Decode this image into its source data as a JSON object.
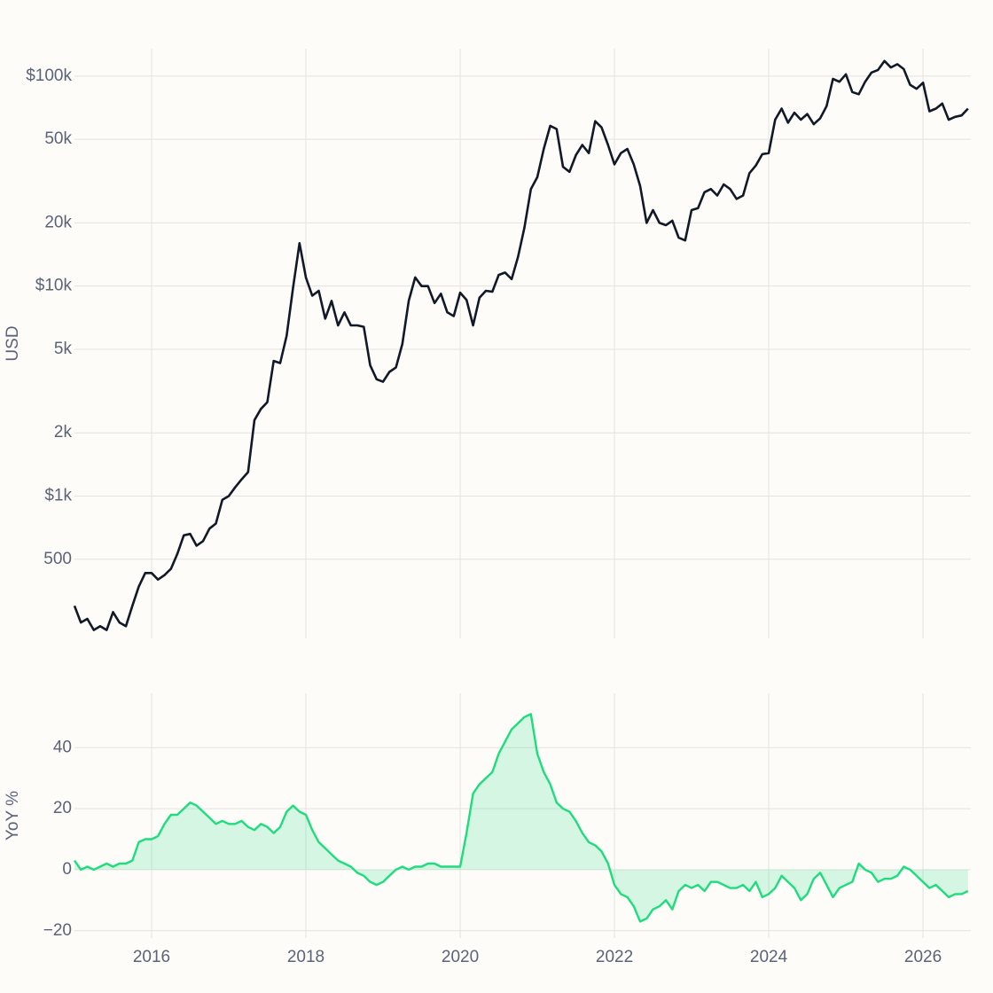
{
  "chart_data": [
    {
      "type": "line",
      "log_scale": true,
      "grid": true,
      "color": "#111827",
      "ylabel": "USD",
      "xlim": [
        2015.0,
        2026.62
      ],
      "xticks": [
        2016,
        2018,
        2020,
        2022,
        2024,
        2026
      ],
      "ylim": [
        210,
        135000
      ],
      "yticks": [
        500,
        {
          "value": 1000,
          "label": "$1k"
        },
        {
          "value": 2000,
          "label": "2k"
        },
        {
          "value": 5000,
          "label": "5k"
        },
        {
          "value": 10000,
          "label": "$10k"
        },
        {
          "value": 20000,
          "label": "20k"
        },
        {
          "value": 50000,
          "label": "50k"
        },
        {
          "value": 100000,
          "label": "$100k"
        }
      ],
      "x": [
        2015.0,
        2015.083,
        2015.167,
        2015.25,
        2015.333,
        2015.417,
        2015.5,
        2015.583,
        2015.667,
        2015.75,
        2015.833,
        2015.917,
        2016.0,
        2016.083,
        2016.167,
        2016.25,
        2016.333,
        2016.417,
        2016.5,
        2016.583,
        2016.667,
        2016.75,
        2016.833,
        2016.917,
        2017.0,
        2017.083,
        2017.167,
        2017.25,
        2017.333,
        2017.417,
        2017.5,
        2017.583,
        2017.667,
        2017.75,
        2017.833,
        2017.917,
        2018.0,
        2018.083,
        2018.167,
        2018.25,
        2018.333,
        2018.417,
        2018.5,
        2018.583,
        2018.667,
        2018.75,
        2018.833,
        2018.917,
        2019.0,
        2019.083,
        2019.167,
        2019.25,
        2019.333,
        2019.417,
        2019.5,
        2019.583,
        2019.667,
        2019.75,
        2019.833,
        2019.917,
        2020.0,
        2020.083,
        2020.167,
        2020.25,
        2020.333,
        2020.417,
        2020.5,
        2020.583,
        2020.667,
        2020.75,
        2020.833,
        2020.917,
        2021.0,
        2021.083,
        2021.167,
        2021.25,
        2021.333,
        2021.417,
        2021.5,
        2021.583,
        2021.667,
        2021.75,
        2021.833,
        2021.917,
        2022.0,
        2022.083,
        2022.167,
        2022.25,
        2022.333,
        2022.417,
        2022.5,
        2022.583,
        2022.667,
        2022.75,
        2022.833,
        2022.917,
        2023.0,
        2023.083,
        2023.167,
        2023.25,
        2023.333,
        2023.417,
        2023.5,
        2023.583,
        2023.667,
        2023.75,
        2023.833,
        2023.917,
        2024.0,
        2024.083,
        2024.167,
        2024.25,
        2024.333,
        2024.417,
        2024.5,
        2024.583,
        2024.667,
        2024.75,
        2024.833,
        2024.917,
        2025.0,
        2025.083,
        2025.167,
        2025.25,
        2025.333,
        2025.417,
        2025.5,
        2025.583,
        2025.667,
        2025.75,
        2025.833,
        2025.917,
        2026.0,
        2026.083,
        2026.167,
        2026.25,
        2026.333,
        2026.417,
        2026.5,
        2026.583
      ],
      "values": [
        300,
        250,
        260,
        230,
        240,
        230,
        280,
        250,
        240,
        300,
        370,
        430,
        430,
        400,
        420,
        450,
        530,
        650,
        660,
        580,
        610,
        700,
        740,
        960,
        1000,
        1100,
        1200,
        1300,
        2300,
        2600,
        2800,
        4400,
        4300,
        5800,
        9800,
        16000,
        11000,
        9000,
        9500,
        7000,
        8500,
        6500,
        7500,
        6500,
        6500,
        6400,
        4200,
        3600,
        3500,
        3900,
        4100,
        5300,
        8500,
        11000,
        10000,
        10000,
        8300,
        9200,
        7500,
        7200,
        9300,
        8600,
        6500,
        8800,
        9500,
        9400,
        11300,
        11600,
        10800,
        13800,
        19000,
        29000,
        33000,
        45000,
        58000,
        56000,
        37000,
        35000,
        42000,
        47000,
        43000,
        61000,
        57000,
        47000,
        38000,
        43000,
        45000,
        38000,
        30000,
        20000,
        23000,
        20000,
        19500,
        20500,
        17000,
        16500,
        23000,
        23500,
        28000,
        29000,
        27000,
        30500,
        29000,
        26000,
        27000,
        34500,
        37500,
        42500,
        43000,
        62000,
        70000,
        60000,
        67000,
        62000,
        66000,
        59000,
        63000,
        72000,
        97000,
        94000,
        102000,
        84000,
        82000,
        94000,
        104000,
        107000,
        118000,
        110000,
        114000,
        108000,
        91000,
        87000,
        93000,
        68000,
        70000,
        74000,
        62000,
        64000,
        65000,
        70000
      ]
    },
    {
      "type": "area",
      "grid": true,
      "color": "#1fdc7e",
      "ylabel": "YoY %",
      "xlim": [
        2015.0,
        2026.62
      ],
      "xticks": [
        2016,
        2018,
        2020,
        2022,
        2024,
        2026
      ],
      "ylim": [
        -22.4,
        57.8
      ],
      "yticks": [
        {
          "value": -20,
          "label": "−20"
        },
        0,
        20,
        40
      ],
      "x": [
        2015.0,
        2015.083,
        2015.167,
        2015.25,
        2015.333,
        2015.417,
        2015.5,
        2015.583,
        2015.667,
        2015.75,
        2015.833,
        2015.917,
        2016.0,
        2016.083,
        2016.167,
        2016.25,
        2016.333,
        2016.417,
        2016.5,
        2016.583,
        2016.667,
        2016.75,
        2016.833,
        2016.917,
        2017.0,
        2017.083,
        2017.167,
        2017.25,
        2017.333,
        2017.417,
        2017.5,
        2017.583,
        2017.667,
        2017.75,
        2017.833,
        2017.917,
        2018.0,
        2018.083,
        2018.167,
        2018.25,
        2018.333,
        2018.417,
        2018.5,
        2018.583,
        2018.667,
        2018.75,
        2018.833,
        2018.917,
        2019.0,
        2019.083,
        2019.167,
        2019.25,
        2019.333,
        2019.417,
        2019.5,
        2019.583,
        2019.667,
        2019.75,
        2019.833,
        2019.917,
        2020.0,
        2020.083,
        2020.167,
        2020.25,
        2020.333,
        2020.417,
        2020.5,
        2020.583,
        2020.667,
        2020.75,
        2020.833,
        2020.917,
        2021.0,
        2021.083,
        2021.167,
        2021.25,
        2021.333,
        2021.417,
        2021.5,
        2021.583,
        2021.667,
        2021.75,
        2021.833,
        2021.917,
        2022.0,
        2022.083,
        2022.167,
        2022.25,
        2022.333,
        2022.417,
        2022.5,
        2022.583,
        2022.667,
        2022.75,
        2022.833,
        2022.917,
        2023.0,
        2023.083,
        2023.167,
        2023.25,
        2023.333,
        2023.417,
        2023.5,
        2023.583,
        2023.667,
        2023.75,
        2023.833,
        2023.917,
        2024.0,
        2024.083,
        2024.167,
        2024.25,
        2024.333,
        2024.417,
        2024.5,
        2024.583,
        2024.667,
        2024.75,
        2024.833,
        2024.917,
        2025.0,
        2025.083,
        2025.167,
        2025.25,
        2025.333,
        2025.417,
        2025.5,
        2025.583,
        2025.667,
        2025.75,
        2025.833,
        2025.917,
        2026.0,
        2026.083,
        2026.167,
        2026.25,
        2026.333,
        2026.417,
        2026.5,
        2026.583
      ],
      "values": [
        3,
        0,
        1,
        0,
        1,
        2,
        1,
        2,
        2,
        3,
        9,
        10,
        10,
        11,
        15,
        18,
        18,
        20,
        22,
        21,
        19,
        17,
        15,
        16,
        15,
        15,
        16,
        14,
        13,
        15,
        14,
        12,
        14,
        19,
        21,
        19,
        18,
        13,
        9,
        7,
        5,
        3,
        2,
        1,
        -1,
        -2,
        -4,
        -5,
        -4,
        -2,
        0,
        1,
        0,
        1,
        1,
        2,
        2,
        1,
        1,
        1,
        1,
        12,
        25,
        28,
        30,
        32,
        38,
        42,
        46,
        48,
        50,
        51,
        38,
        32,
        28,
        22,
        20,
        19,
        16,
        12,
        9,
        8,
        6,
        2,
        -5,
        -8,
        -9,
        -12,
        -17,
        -16,
        -13,
        -12,
        -10,
        -13,
        -7,
        -5,
        -6,
        -5,
        -7,
        -4,
        -4,
        -5,
        -6,
        -6,
        -5,
        -7,
        -4,
        -9,
        -8,
        -6,
        -2,
        -4,
        -6,
        -10,
        -8,
        -3,
        -1,
        -5,
        -9,
        -6,
        -5,
        -4,
        2,
        0,
        -1,
        -4,
        -3,
        -3,
        -2,
        1,
        0,
        -2,
        -4,
        -6,
        -5,
        -7,
        -9,
        -8,
        -8,
        -7
      ]
    }
  ]
}
